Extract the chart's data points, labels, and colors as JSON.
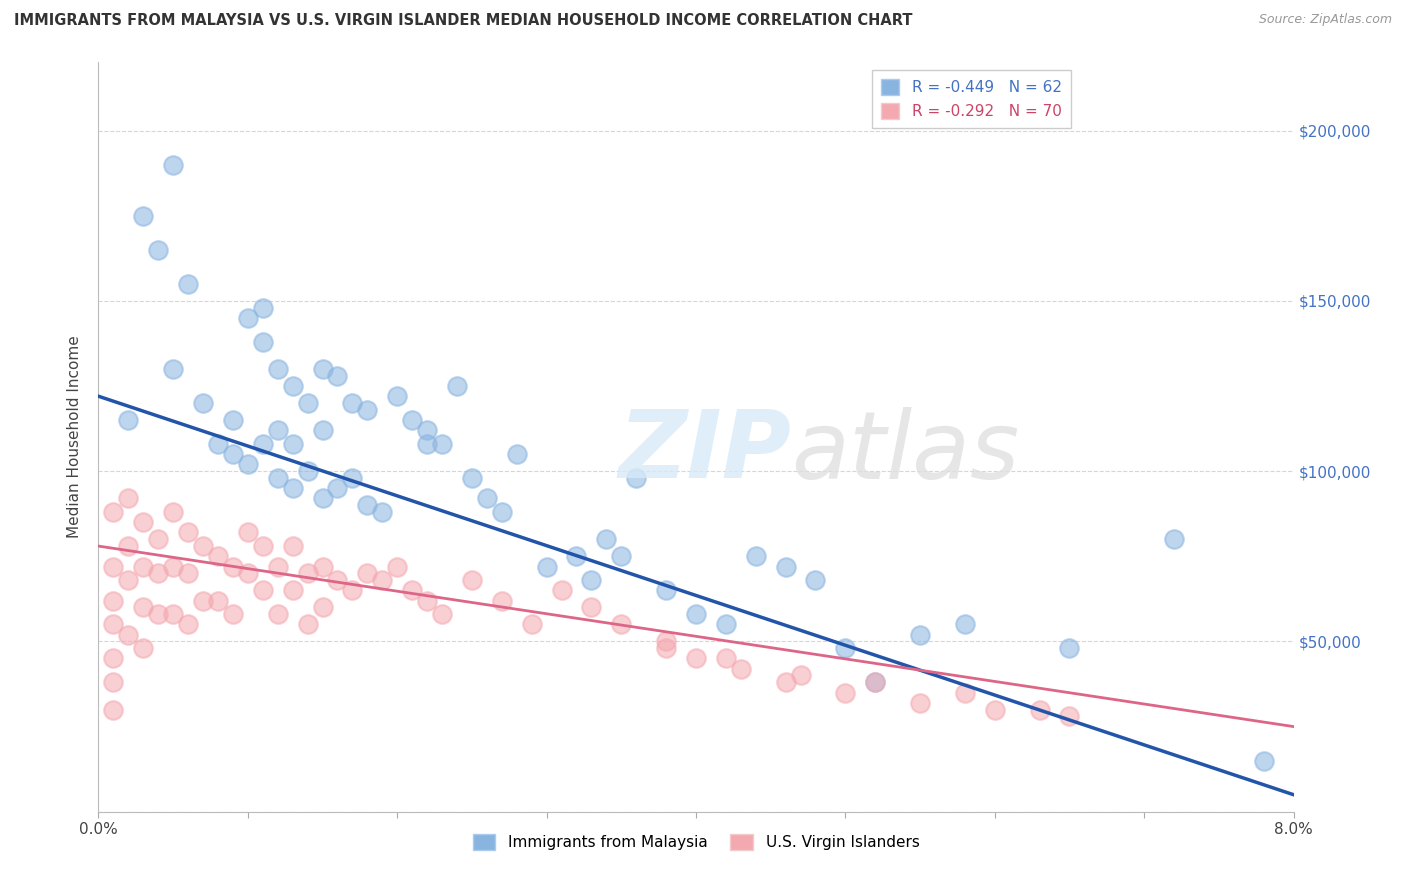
{
  "title": "IMMIGRANTS FROM MALAYSIA VS U.S. VIRGIN ISLANDER MEDIAN HOUSEHOLD INCOME CORRELATION CHART",
  "source": "Source: ZipAtlas.com",
  "ylabel": "Median Household Income",
  "legend_blue_r": "R = -0.449",
  "legend_blue_n": "N = 62",
  "legend_pink_r": "R = -0.292",
  "legend_pink_n": "N = 70",
  "legend_label_blue": "Immigrants from Malaysia",
  "legend_label_pink": "U.S. Virgin Islanders",
  "blue_color": "#8ab4e0",
  "pink_color": "#f4a8b0",
  "blue_line_color": "#2255aa",
  "pink_line_color": "#dd6688",
  "xlim": [
    0.0,
    0.08
  ],
  "ylim": [
    0,
    220000
  ],
  "yticks": [
    0,
    50000,
    100000,
    150000,
    200000
  ],
  "ytick_labels": [
    "",
    "$50,000",
    "$100,000",
    "$150,000",
    "$200,000"
  ],
  "blue_line_x0": 0.0,
  "blue_line_y0": 122000,
  "blue_line_x1": 0.08,
  "blue_line_y1": 5000,
  "pink_line_x0": 0.0,
  "pink_line_y0": 78000,
  "pink_line_x1": 0.08,
  "pink_line_y1": 25000,
  "blue_scatter_x": [
    0.002,
    0.003,
    0.004,
    0.005,
    0.005,
    0.006,
    0.007,
    0.008,
    0.009,
    0.009,
    0.01,
    0.01,
    0.011,
    0.011,
    0.011,
    0.012,
    0.012,
    0.012,
    0.013,
    0.013,
    0.013,
    0.014,
    0.014,
    0.015,
    0.015,
    0.015,
    0.016,
    0.016,
    0.017,
    0.017,
    0.018,
    0.018,
    0.019,
    0.02,
    0.021,
    0.022,
    0.022,
    0.023,
    0.024,
    0.025,
    0.026,
    0.027,
    0.028,
    0.03,
    0.032,
    0.033,
    0.034,
    0.035,
    0.036,
    0.038,
    0.04,
    0.042,
    0.044,
    0.046,
    0.048,
    0.05,
    0.052,
    0.055,
    0.058,
    0.065,
    0.072,
    0.078
  ],
  "blue_scatter_y": [
    115000,
    175000,
    165000,
    190000,
    130000,
    155000,
    120000,
    108000,
    115000,
    105000,
    145000,
    102000,
    148000,
    138000,
    108000,
    130000,
    112000,
    98000,
    125000,
    108000,
    95000,
    120000,
    100000,
    130000,
    112000,
    92000,
    128000,
    95000,
    120000,
    98000,
    118000,
    90000,
    88000,
    122000,
    115000,
    112000,
    108000,
    108000,
    125000,
    98000,
    92000,
    88000,
    105000,
    72000,
    75000,
    68000,
    80000,
    75000,
    98000,
    65000,
    58000,
    55000,
    75000,
    72000,
    68000,
    48000,
    38000,
    52000,
    55000,
    48000,
    80000,
    15000
  ],
  "pink_scatter_x": [
    0.001,
    0.001,
    0.001,
    0.001,
    0.001,
    0.001,
    0.001,
    0.002,
    0.002,
    0.002,
    0.002,
    0.003,
    0.003,
    0.003,
    0.003,
    0.004,
    0.004,
    0.004,
    0.005,
    0.005,
    0.005,
    0.006,
    0.006,
    0.006,
    0.007,
    0.007,
    0.008,
    0.008,
    0.009,
    0.009,
    0.01,
    0.01,
    0.011,
    0.011,
    0.012,
    0.012,
    0.013,
    0.013,
    0.014,
    0.014,
    0.015,
    0.015,
    0.016,
    0.017,
    0.018,
    0.019,
    0.02,
    0.021,
    0.022,
    0.023,
    0.025,
    0.027,
    0.029,
    0.031,
    0.033,
    0.035,
    0.038,
    0.04,
    0.043,
    0.046,
    0.05,
    0.055,
    0.06,
    0.065,
    0.038,
    0.042,
    0.047,
    0.052,
    0.058,
    0.063
  ],
  "pink_scatter_y": [
    88000,
    72000,
    62000,
    55000,
    45000,
    38000,
    30000,
    92000,
    78000,
    68000,
    52000,
    85000,
    72000,
    60000,
    48000,
    80000,
    70000,
    58000,
    88000,
    72000,
    58000,
    82000,
    70000,
    55000,
    78000,
    62000,
    75000,
    62000,
    72000,
    58000,
    82000,
    70000,
    78000,
    65000,
    72000,
    58000,
    78000,
    65000,
    70000,
    55000,
    72000,
    60000,
    68000,
    65000,
    70000,
    68000,
    72000,
    65000,
    62000,
    58000,
    68000,
    62000,
    55000,
    65000,
    60000,
    55000,
    48000,
    45000,
    42000,
    38000,
    35000,
    32000,
    30000,
    28000,
    50000,
    45000,
    40000,
    38000,
    35000,
    30000
  ]
}
